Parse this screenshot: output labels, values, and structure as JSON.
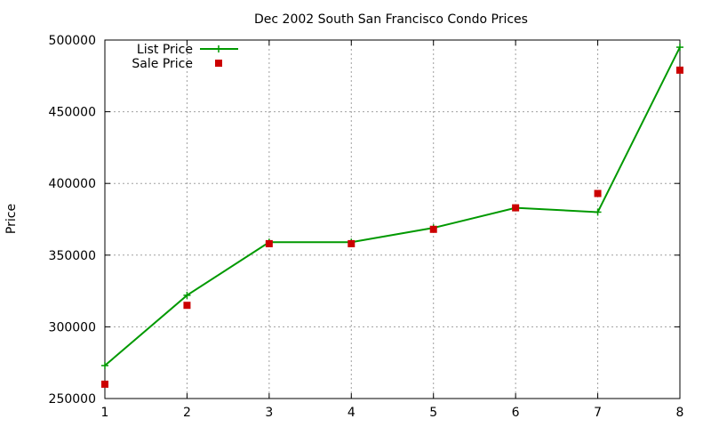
{
  "chart_data": {
    "type": "line",
    "title": "Dec 2002 South San Francisco Condo Prices",
    "xlabel": "",
    "ylabel": "Price",
    "x": [
      1,
      2,
      3,
      4,
      5,
      6,
      7,
      8
    ],
    "xlim": [
      1,
      8
    ],
    "ylim": [
      250000,
      500000
    ],
    "xticks": [
      "1",
      "2",
      "3",
      "4",
      "5",
      "6",
      "7",
      "8"
    ],
    "yticks": [
      "250000",
      "300000",
      "350000",
      "400000",
      "450000",
      "500000"
    ],
    "grid": true,
    "legend_position": "top-left",
    "series": [
      {
        "name": "List Price",
        "style": "linespoints",
        "marker": "plus",
        "color": "#009900",
        "values": [
          273000,
          322000,
          359000,
          359000,
          369000,
          383000,
          380000,
          495000
        ]
      },
      {
        "name": "Sale Price",
        "style": "points",
        "marker": "square",
        "color": "#cc0000",
        "values": [
          260000,
          315000,
          358000,
          358000,
          368000,
          383000,
          393000,
          479000
        ]
      }
    ]
  }
}
